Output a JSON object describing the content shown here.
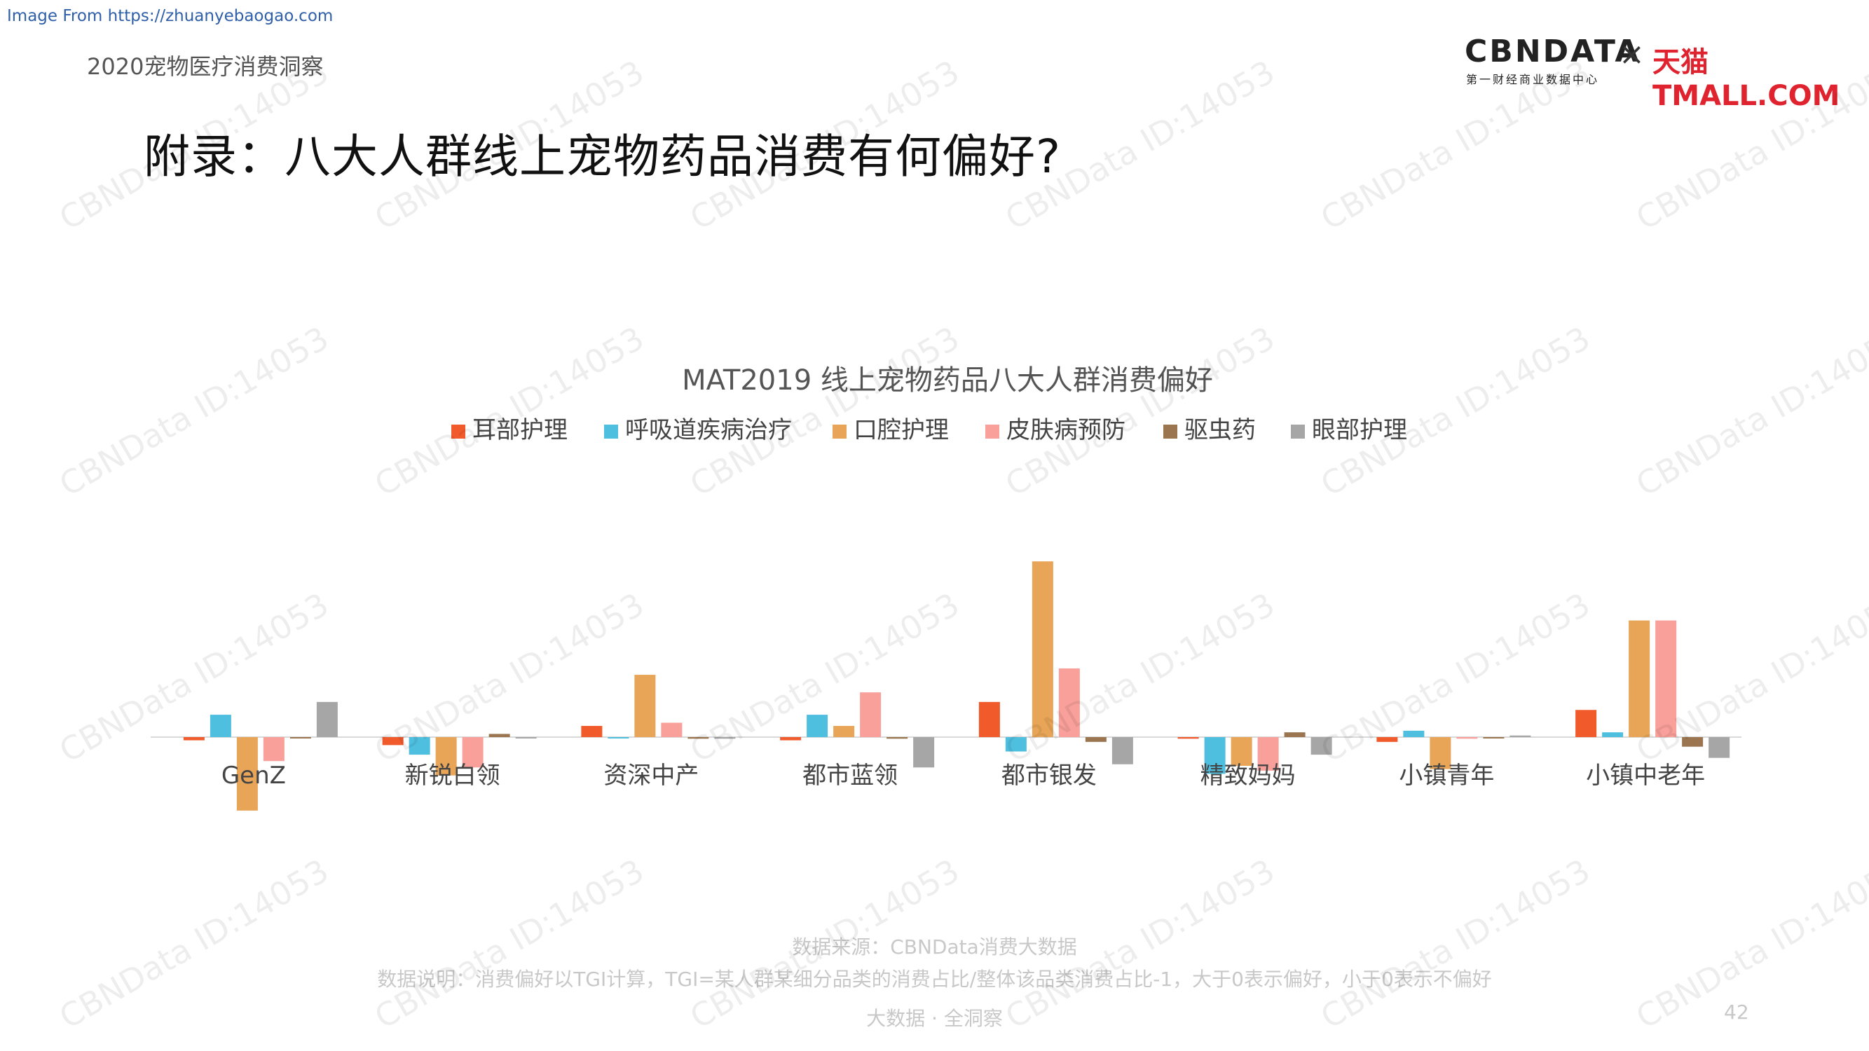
{
  "header": {
    "source_link": "Image From https://zhuanyebaogao.com",
    "report_name": "2020宠物医疗消费洞察",
    "title": "附录：八大人群线上宠物药品消费有何偏好?"
  },
  "logo": {
    "cbn_text": "CBNDATA",
    "cbn_subtitle": "第一财经商业数据中心",
    "separator": "×",
    "tmall_text": "天猫TMALL.COM"
  },
  "watermark_text": "CBNData ID:14053",
  "chart_data": {
    "type": "bar",
    "title": "MAT2019 线上宠物药品八大人群消费偏好",
    "categories": [
      "GenZ",
      "新锐白领",
      "资深中产",
      "都市蓝领",
      "都市银发",
      "精致妈妈",
      "小镇青年",
      "小镇中老年"
    ],
    "series": [
      {
        "name": "耳部护理",
        "color": "#f15a2b",
        "values": [
          -0.02,
          -0.05,
          0.07,
          -0.02,
          0.22,
          -0.01,
          -0.03,
          0.17
        ]
      },
      {
        "name": "呼吸道疾病治疗",
        "color": "#4fbfe0",
        "values": [
          0.14,
          -0.11,
          0.0,
          0.14,
          -0.09,
          -0.23,
          0.04,
          0.03
        ]
      },
      {
        "name": "口腔护理",
        "color": "#e8a557",
        "values": [
          -0.46,
          -0.24,
          0.39,
          0.07,
          1.1,
          -0.18,
          -0.2,
          0.73
        ]
      },
      {
        "name": "皮肤病预防",
        "color": "#f9a09a",
        "values": [
          -0.15,
          -0.19,
          0.09,
          0.28,
          0.43,
          -0.21,
          -0.01,
          0.73
        ]
      },
      {
        "name": "驱虫药",
        "color": "#9a7550",
        "values": [
          0.0,
          0.02,
          -0.01,
          -0.01,
          -0.03,
          0.03,
          0.0,
          -0.06
        ]
      },
      {
        "name": "眼部护理",
        "color": "#a6a6a6",
        "values": [
          0.22,
          0.0,
          -0.01,
          -0.19,
          -0.17,
          -0.11,
          0.01,
          -0.13
        ]
      }
    ],
    "ylim": [
      -0.55,
      1.15
    ],
    "grid": false,
    "legend_position": "top"
  },
  "footer": {
    "source": "数据来源：CBNData消费大数据",
    "note": "数据说明：消费偏好以TGI计算，TGI=某人群某细分品类的消费占比/整体该品类消费占比-1，大于0表示偏好，小于0表示不偏好",
    "slogan": "大数据 · 全洞察",
    "page_number": "42"
  }
}
